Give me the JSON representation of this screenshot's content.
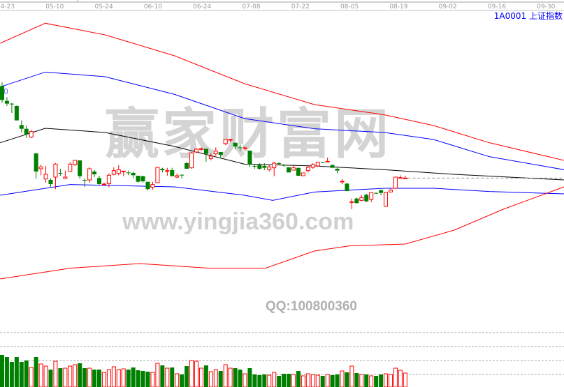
{
  "header": {
    "symbol": "1A0001 上证指数"
  },
  "watermark": {
    "brand": "赢家财富网",
    "url": "www.yingjia360.com",
    "qq": "QQ:100800360"
  },
  "colors": {
    "up": "#ff0000",
    "down": "#008000",
    "upper_outer": "#ff0000",
    "upper_inner": "#0000ff",
    "middle": "#000000",
    "lower_inner": "#0000ff",
    "lower_outer": "#ff0000",
    "grid": "#aaaaaa",
    "axis_text": "#9a9a9a"
  },
  "chart_data": {
    "type": "candlestick",
    "x_ticks": [
      "04-23",
      "05-10",
      "05-24",
      "06-10",
      "06-24",
      "07-08",
      "07-22",
      "08-05",
      "08-19",
      "09-02",
      "09-16",
      "09-30"
    ],
    "price_label": "0",
    "candles": [
      [
        3190,
        3198,
        3154,
        3160
      ],
      [
        3158,
        3166,
        3147,
        3152
      ],
      [
        3152,
        3154,
        3132,
        3151
      ],
      [
        3147,
        3148,
        3116,
        3116
      ],
      [
        3106,
        3116,
        3090,
        3098
      ],
      [
        3098,
        3105,
        3078,
        3086
      ],
      [
        3080,
        3096,
        3078,
        3092
      ],
      [
        3045,
        3045,
        2991,
        3006
      ],
      [
        3012,
        3021,
        2998,
        3016
      ],
      [
        2990,
        3018,
        2982,
        3000
      ],
      [
        2988,
        2991,
        2973,
        2979
      ],
      [
        2994,
        3024,
        2968,
        3022
      ],
      [
        3003,
        3012,
        2997,
        3002
      ],
      [
        2991,
        3008,
        2991,
        2994
      ],
      [
        3006,
        3026,
        3006,
        3022
      ],
      [
        3021,
        3030,
        3018,
        3030
      ],
      [
        3030,
        3030,
        2990,
        2996
      ],
      [
        2988,
        2991,
        2973,
        2987
      ],
      [
        2988,
        3015,
        2982,
        3012
      ],
      [
        3006,
        3009,
        2994,
        3000
      ],
      [
        2992,
        2997,
        2978,
        2979
      ],
      [
        2978,
        2982,
        2978,
        2979
      ],
      [
        2980,
        3002,
        2972,
        2998
      ],
      [
        3000,
        3015,
        2998,
        3008
      ],
      [
        3002,
        3020,
        2998,
        3010
      ],
      [
        3006,
        3006,
        2996,
        3007
      ],
      [
        3004,
        3008,
        2998,
        3003
      ],
      [
        3003,
        3006,
        2992,
        2998
      ],
      [
        2997,
        2997,
        2982,
        2984
      ],
      [
        2996,
        2997,
        2982,
        2985
      ],
      [
        2984,
        2984,
        2966,
        2968
      ],
      [
        2972,
        2984,
        2967,
        2978
      ],
      [
        2982,
        3016,
        2982,
        3015
      ],
      [
        3012,
        3014,
        3004,
        3009
      ],
      [
        3007,
        3014,
        2997,
        3008
      ],
      [
        3009,
        3014,
        2996,
        2996
      ],
      [
        2994,
        3002,
        2992,
        2997
      ],
      [
        2999,
        3000,
        2991,
        2998
      ],
      [
        3024,
        3027,
        3012,
        3012
      ],
      [
        3014,
        3048,
        3012,
        3046
      ],
      [
        3048,
        3057,
        3045,
        3054
      ],
      [
        3054,
        3058,
        3051,
        3055
      ],
      [
        3055,
        3055,
        3027,
        3044
      ],
      [
        3034,
        3045,
        3030,
        3039
      ],
      [
        3044,
        3058,
        3040,
        3050
      ],
      [
        3048,
        3048,
        3034,
        3042
      ],
      [
        3066,
        3075,
        3063,
        3075
      ],
      [
        3074,
        3076,
        3069,
        3075
      ],
      [
        3068,
        3068,
        3054,
        3060
      ],
      [
        3058,
        3064,
        3050,
        3057
      ],
      [
        3056,
        3060,
        3050,
        3057
      ],
      [
        3051,
        3051,
        3015,
        3021
      ],
      [
        3018,
        3021,
        3012,
        3017
      ],
      [
        3020,
        3024,
        3010,
        3012
      ],
      [
        3018,
        3024,
        3009,
        3014
      ],
      [
        3010,
        3021,
        3006,
        3016
      ],
      [
        3014,
        3027,
        2996,
        3024
      ],
      [
        3024,
        3026,
        3021,
        3023
      ],
      [
        3020,
        3022,
        3016,
        3019
      ],
      [
        3015,
        3015,
        3004,
        3004
      ],
      [
        3009,
        3021,
        3008,
        3014
      ],
      [
        3014,
        3014,
        2996,
        2997
      ],
      [
        2997,
        3003,
        2996,
        3003
      ],
      [
        3008,
        3020,
        3004,
        3015
      ],
      [
        3015,
        3024,
        3012,
        3021
      ],
      [
        3018,
        3027,
        3016,
        3026
      ],
      [
        3026,
        3027,
        3024,
        3025
      ],
      [
        3027,
        3036,
        3027,
        3028
      ],
      [
        3020,
        3021,
        3014,
        3014
      ],
      [
        3012,
        3015,
        3002,
        3008
      ],
      [
        2984,
        2990,
        2979,
        2985
      ],
      [
        2980,
        2982,
        2964,
        2964
      ],
      [
        2940,
        2948,
        2925,
        2941
      ],
      [
        2948,
        2950,
        2937,
        2938
      ],
      [
        2944,
        2955,
        2942,
        2950
      ],
      [
        2956,
        2958,
        2940,
        2942
      ],
      [
        2946,
        2961,
        2940,
        2961
      ],
      [
        2960,
        2961,
        2958,
        2959
      ],
      [
        2966,
        2967,
        2955,
        2960
      ],
      [
        2931,
        2961,
        2930,
        2961
      ],
      [
        2962,
        2970,
        2961,
        2966
      ],
      [
        2970,
        2995,
        2968,
        2994
      ],
      [
        2992,
        2998,
        2991,
        2993
      ],
      [
        2992,
        2997,
        2991,
        2992
      ]
    ],
    "volume": [
      46,
      43,
      36,
      43,
      36,
      38,
      28,
      43,
      33,
      30,
      25,
      37,
      27,
      27,
      30,
      32,
      34,
      27,
      27,
      25,
      25,
      21,
      25,
      29,
      25,
      26,
      25,
      28,
      24,
      23,
      22,
      21,
      34,
      31,
      27,
      28,
      19,
      18,
      30,
      38,
      37,
      27,
      31,
      22,
      25,
      23,
      32,
      27,
      27,
      25,
      19,
      27,
      18,
      17,
      18,
      17,
      21,
      16,
      19,
      19,
      18,
      23,
      16,
      19,
      18,
      17,
      16,
      18,
      17,
      18,
      23,
      21,
      30,
      20,
      18,
      18,
      16,
      16,
      18,
      19,
      18,
      27,
      24,
      20
    ],
    "bands": {
      "upper_outer": [
        [
          -0.4,
          3282
        ],
        [
          8.9,
          3325
        ],
        [
          21.2,
          3300
        ],
        [
          35.5,
          3255
        ],
        [
          49.9,
          3195
        ],
        [
          64.3,
          3150
        ],
        [
          78.7,
          3128
        ],
        [
          88.8,
          3105
        ],
        [
          100.3,
          3068
        ],
        [
          115.7,
          3030
        ]
      ],
      "upper_inner": [
        [
          -0.4,
          3188
        ],
        [
          8.9,
          3220
        ],
        [
          21.2,
          3210
        ],
        [
          35.5,
          3172
        ],
        [
          49.9,
          3120
        ],
        [
          64.3,
          3098
        ],
        [
          78.7,
          3090
        ],
        [
          88.8,
          3075
        ],
        [
          100.3,
          3038
        ],
        [
          115.7,
          3010
        ]
      ],
      "middle": [
        [
          -0.4,
          3068
        ],
        [
          8.9,
          3099
        ],
        [
          21.2,
          3090
        ],
        [
          35.5,
          3060
        ],
        [
          49.9,
          3022
        ],
        [
          64.3,
          3018
        ],
        [
          78.7,
          3010
        ],
        [
          93.1,
          3000
        ],
        [
          115.7,
          2988
        ]
      ],
      "lower_inner": [
        [
          -0.4,
          2955
        ],
        [
          14.0,
          2978
        ],
        [
          35.5,
          2973
        ],
        [
          49.9,
          2955
        ],
        [
          55.7,
          2944
        ],
        [
          64.3,
          2962
        ],
        [
          78.7,
          2970
        ],
        [
          88.8,
          2970
        ],
        [
          100.3,
          2963
        ],
        [
          115.7,
          2958
        ]
      ],
      "lower_outer": [
        [
          -0.4,
          2775
        ],
        [
          14.0,
          2798
        ],
        [
          28.3,
          2808
        ],
        [
          42.7,
          2798
        ],
        [
          54.2,
          2798
        ],
        [
          64.3,
          2835
        ],
        [
          71.5,
          2846
        ],
        [
          83.0,
          2850
        ],
        [
          93.1,
          2880
        ],
        [
          103.2,
          2925
        ],
        [
          115.7,
          2973
        ]
      ]
    },
    "last_close_extension": 2992
  }
}
